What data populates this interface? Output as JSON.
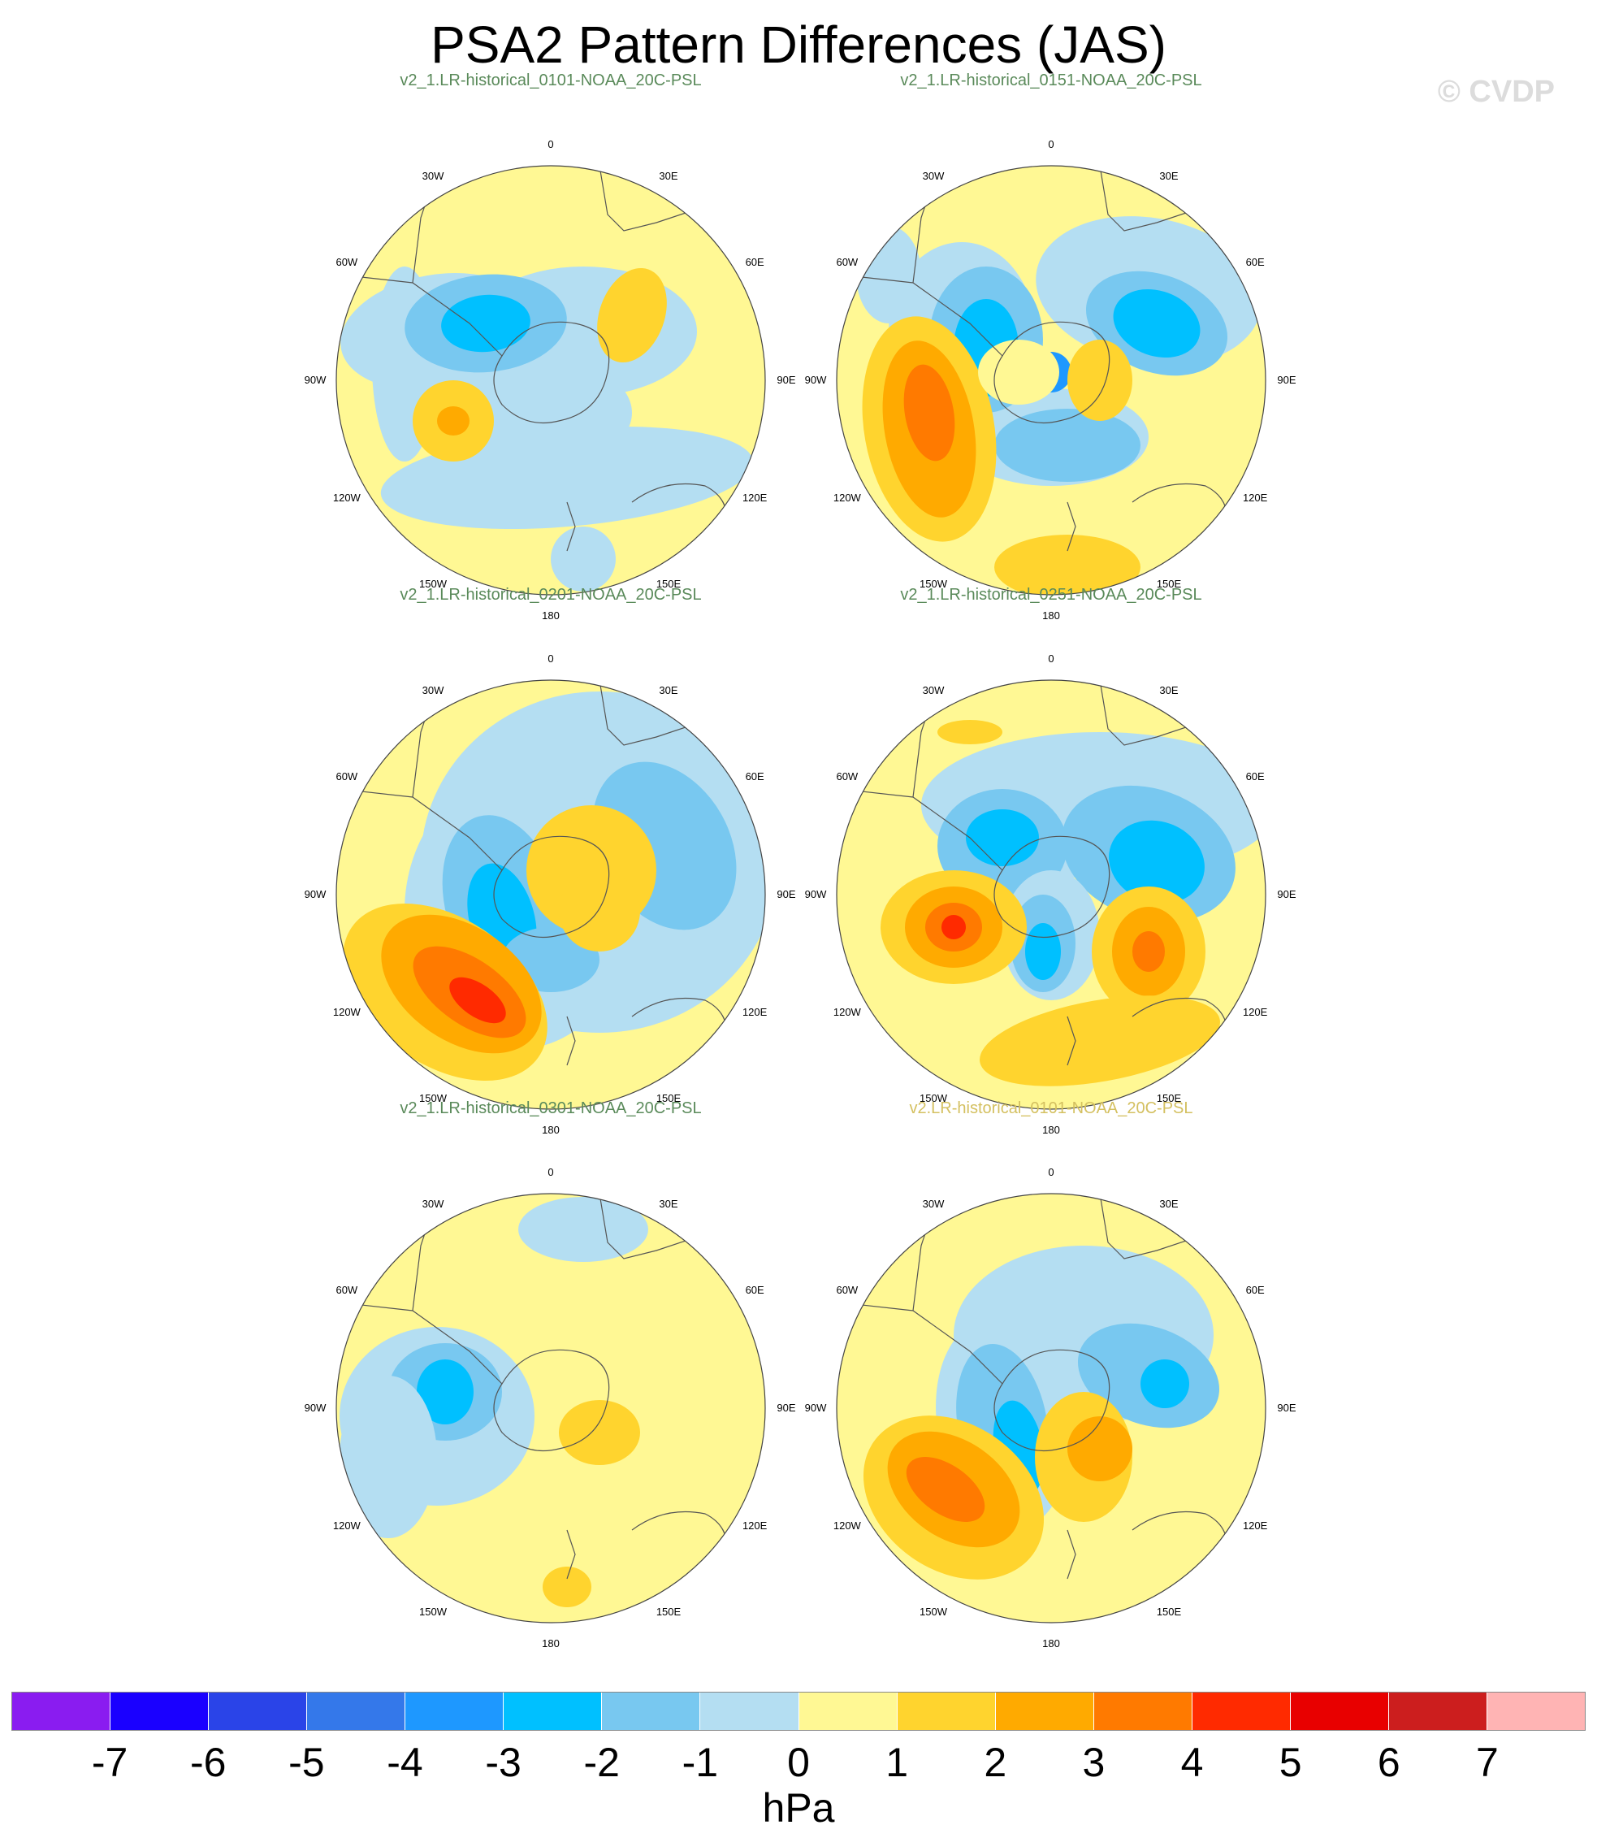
{
  "title": "PSA2 Pattern Differences (JAS)",
  "copyright": "© CVDP",
  "panels": [
    {
      "title": "v2_1.LR-historical_0101-NOAA_20C-PSL",
      "title_color": "#5a8a5a"
    },
    {
      "title": "v2_1.LR-historical_0151-NOAA_20C-PSL",
      "title_color": "#5a8a5a"
    },
    {
      "title": "v2_1.LR-historical_0201-NOAA_20C-PSL",
      "title_color": "#5a8a5a"
    },
    {
      "title": "v2_1.LR-historical_0251-NOAA_20C-PSL",
      "title_color": "#5a8a5a"
    },
    {
      "title": "v2_1.LR-historical_0301-NOAA_20C-PSL",
      "title_color": "#5a8a5a"
    },
    {
      "title": "v2.LR-historical_0101-NOAA_20C-PSL",
      "title_color": "#d4c060"
    }
  ],
  "longitude_labels": {
    "top": "0",
    "bottom": "180",
    "w30": "30W",
    "e30": "30E",
    "w60": "60W",
    "e60": "60E",
    "w90": "90W",
    "e90": "90E",
    "w120": "120W",
    "e120": "120E",
    "w150": "150W",
    "e150": "150E"
  },
  "colorbar": {
    "colors": [
      "#8a1cf0",
      "#1a00ff",
      "#2a44e8",
      "#3478ea",
      "#1e98ff",
      "#00c0ff",
      "#78c8f0",
      "#b4def2",
      "#fff894",
      "#ffd42e",
      "#ffaa00",
      "#ff7a00",
      "#ff2a00",
      "#e80000",
      "#cc1e1e",
      "#ffb4b4"
    ],
    "ticks": [
      "-7",
      "-6",
      "-5",
      "-4",
      "-3",
      "-2",
      "-1",
      "0",
      "1",
      "2",
      "3",
      "4",
      "5",
      "6",
      "7"
    ],
    "units": "hPa"
  }
}
